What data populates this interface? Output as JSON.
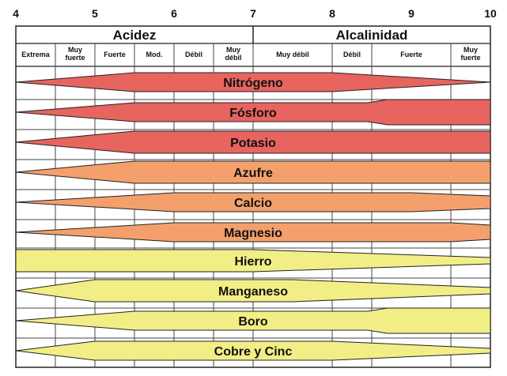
{
  "ph_ticks": [
    "4",
    "5",
    "6",
    "7",
    "8",
    "9",
    "10"
  ],
  "groups": {
    "acid": "Acidez",
    "alkaline": "Alcalinidad"
  },
  "subheaders": [
    {
      "text": [
        "Extrema"
      ]
    },
    {
      "text": [
        "Muy",
        "fuerte"
      ]
    },
    {
      "text": [
        "Fuerte"
      ]
    },
    {
      "text": [
        "Mod."
      ]
    },
    {
      "text": [
        "Débil"
      ]
    },
    {
      "text": [
        "Muy",
        "débil"
      ]
    },
    {
      "text": [
        "Muy débil"
      ]
    },
    {
      "text": [
        "Débil"
      ]
    },
    {
      "text": [
        "Fuerte"
      ]
    },
    {
      "text": [
        "Muy",
        "fuerte"
      ]
    }
  ],
  "bands": [
    {
      "label": "Nitrógeno",
      "color": "#e8645f"
    },
    {
      "label": "Fósforo",
      "color": "#e8645f"
    },
    {
      "label": "Potasio",
      "color": "#e8645f"
    },
    {
      "label": "Azufre",
      "color": "#f4a06c"
    },
    {
      "label": "Calcio",
      "color": "#f4a06c"
    },
    {
      "label": "Magnesio",
      "color": "#f4a06c"
    },
    {
      "label": "Hierro",
      "color": "#f2ee86"
    },
    {
      "label": "Manganeso",
      "color": "#f2ee86"
    },
    {
      "label": "Boro",
      "color": "#f2ee86"
    },
    {
      "label": "Cobre y Cinc",
      "color": "#f2ee86"
    }
  ]
}
